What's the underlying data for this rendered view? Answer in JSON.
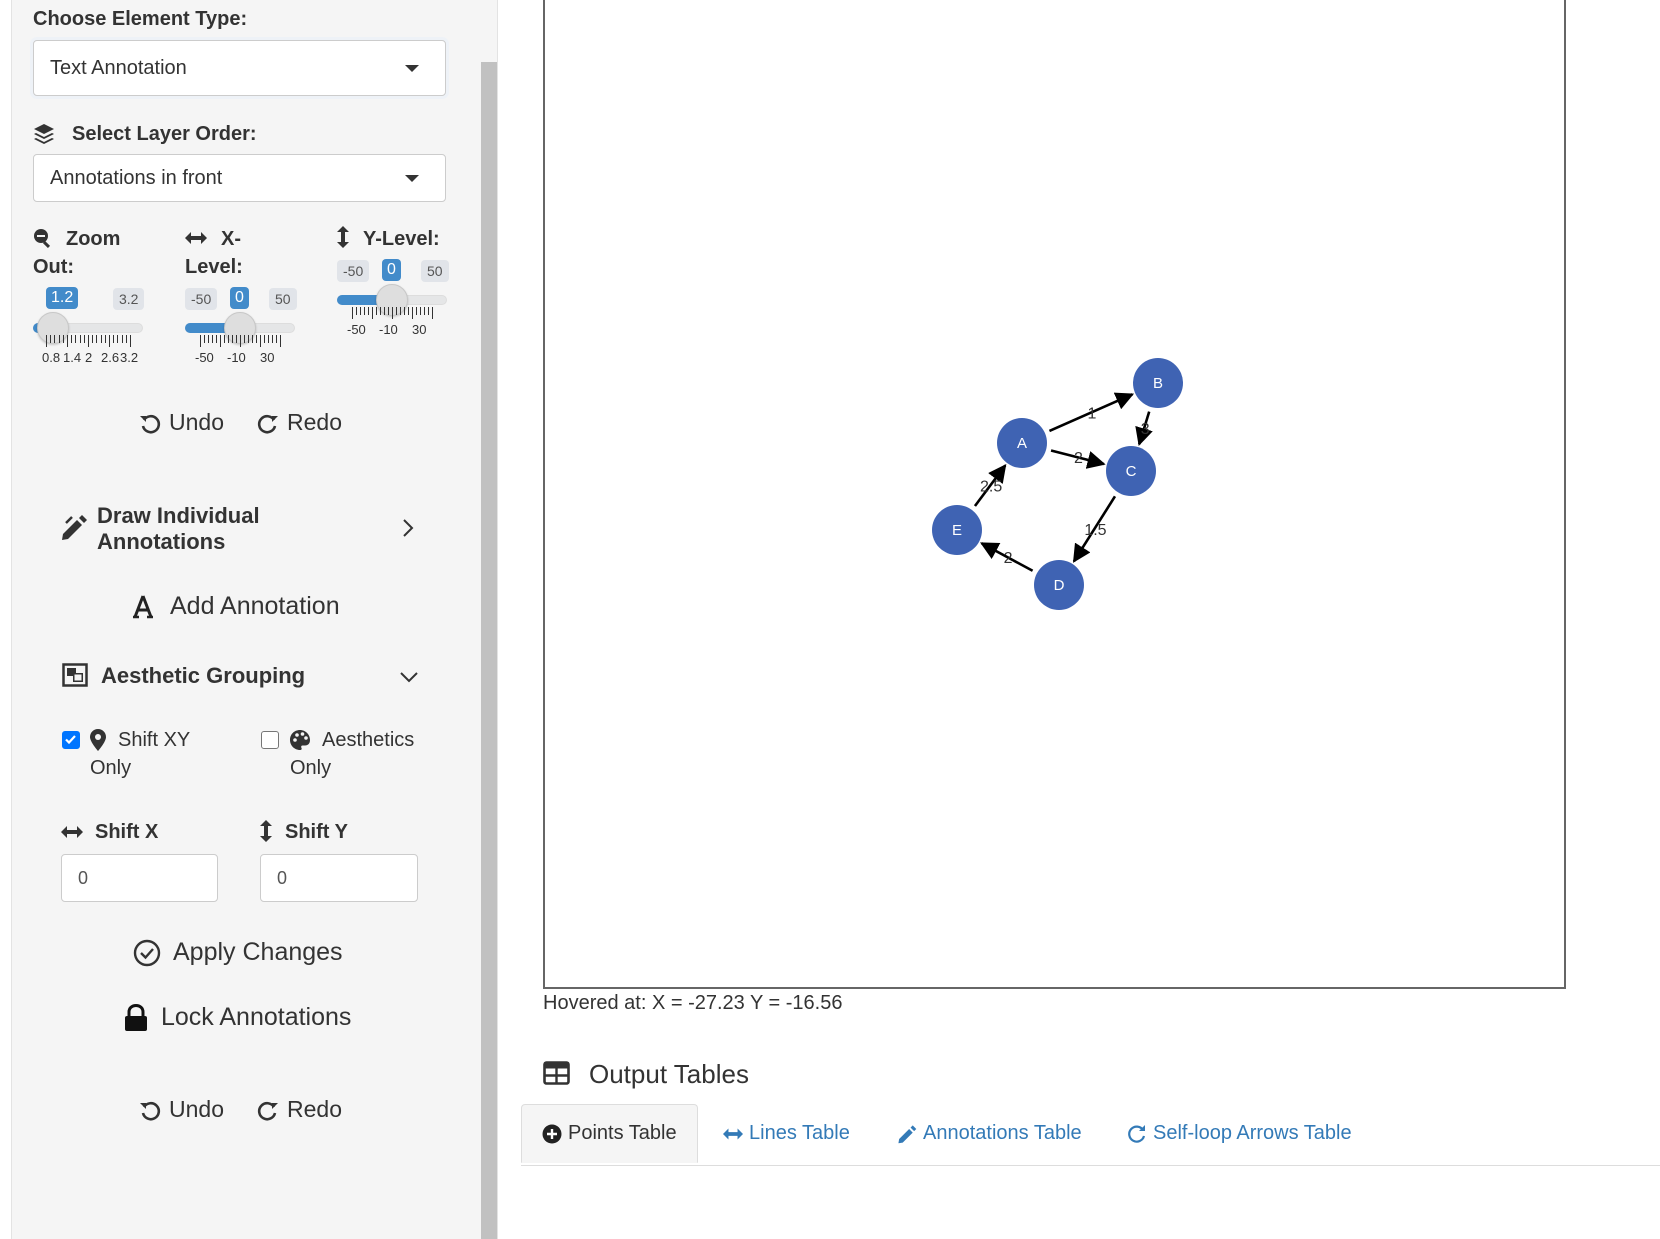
{
  "sidebar": {
    "element_type": {
      "label": "Choose Element Type:",
      "value": "Text Annotation"
    },
    "layer_order": {
      "label": "Select Layer Order:",
      "value": "Annotations in front",
      "icon": "layers-icon"
    },
    "zoom": {
      "label_line1": "Zoom",
      "label_line2": "Out:",
      "icon": "zoom-out-icon",
      "value": "1.2",
      "max": "3.2",
      "value_fraction": 0.18,
      "tick_labels": [
        "0.8",
        "1.4",
        "2",
        "2.6",
        "3.2"
      ]
    },
    "x_level": {
      "label_line1": "X-",
      "label_line2": "Level:",
      "icon": "horizontal-arrows-icon",
      "min": "-50",
      "value": "0",
      "max": "50",
      "value_fraction": 0.5,
      "tick_labels": [
        "-50",
        "-10",
        "30"
      ]
    },
    "y_level": {
      "label": "Y-Level:",
      "icon": "vertical-arrows-icon",
      "min": "-50",
      "value": "0",
      "max": "50",
      "value_fraction": 0.5,
      "tick_labels": [
        "-50",
        "-10",
        "30"
      ]
    },
    "undo_label": "Undo",
    "redo_label": "Redo",
    "draw_individual": {
      "line1": "Draw Individual",
      "line2": "Annotations",
      "icon": "pencil-icon"
    },
    "add_annotation": {
      "label": "Add Annotation",
      "icon": "font-icon"
    },
    "aesthetic_grouping": {
      "label": "Aesthetic Grouping",
      "icon": "object-group-icon"
    },
    "shift_xy_only": {
      "line1": "Shift XY",
      "line2": "Only",
      "checked": true,
      "icon": "map-marker-icon"
    },
    "aesthetics_only": {
      "line1": "Aesthetics",
      "line2": "Only",
      "checked": false,
      "icon": "palette-icon"
    },
    "shift_x": {
      "label": "Shift X",
      "value": "0"
    },
    "shift_y": {
      "label": "Shift Y",
      "value": "0"
    },
    "apply_changes": "Apply Changes",
    "lock_annotations": "Lock Annotations",
    "undo2_label": "Undo",
    "redo2_label": "Redo"
  },
  "plot": {
    "hover_text": "Hovered at: X = -27.23 Y = -16.56",
    "node_color": "#3f63b3",
    "nodes": [
      {
        "id": "A"
      },
      {
        "id": "B"
      },
      {
        "id": "C"
      },
      {
        "id": "D"
      },
      {
        "id": "E"
      }
    ],
    "edges": [
      {
        "from": "A",
        "to": "B",
        "weight": "1"
      },
      {
        "from": "B",
        "to": "C",
        "weight": "3"
      },
      {
        "from": "A",
        "to": "C",
        "weight": "2"
      },
      {
        "from": "C",
        "to": "D",
        "weight": "1.5"
      },
      {
        "from": "D",
        "to": "E",
        "weight": "2"
      },
      {
        "from": "E",
        "to": "A",
        "weight": "2.5"
      }
    ]
  },
  "output": {
    "title": "Output Tables",
    "tabs": [
      {
        "label": "Points Table",
        "icon": "plus-circle-icon",
        "active": true
      },
      {
        "label": "Lines Table",
        "icon": "horizontal-arrows-icon",
        "active": false
      },
      {
        "label": "Annotations Table",
        "icon": "pencil-icon",
        "active": false
      },
      {
        "label": "Self-loop Arrows Table",
        "icon": "rotate-icon",
        "active": false
      }
    ]
  }
}
